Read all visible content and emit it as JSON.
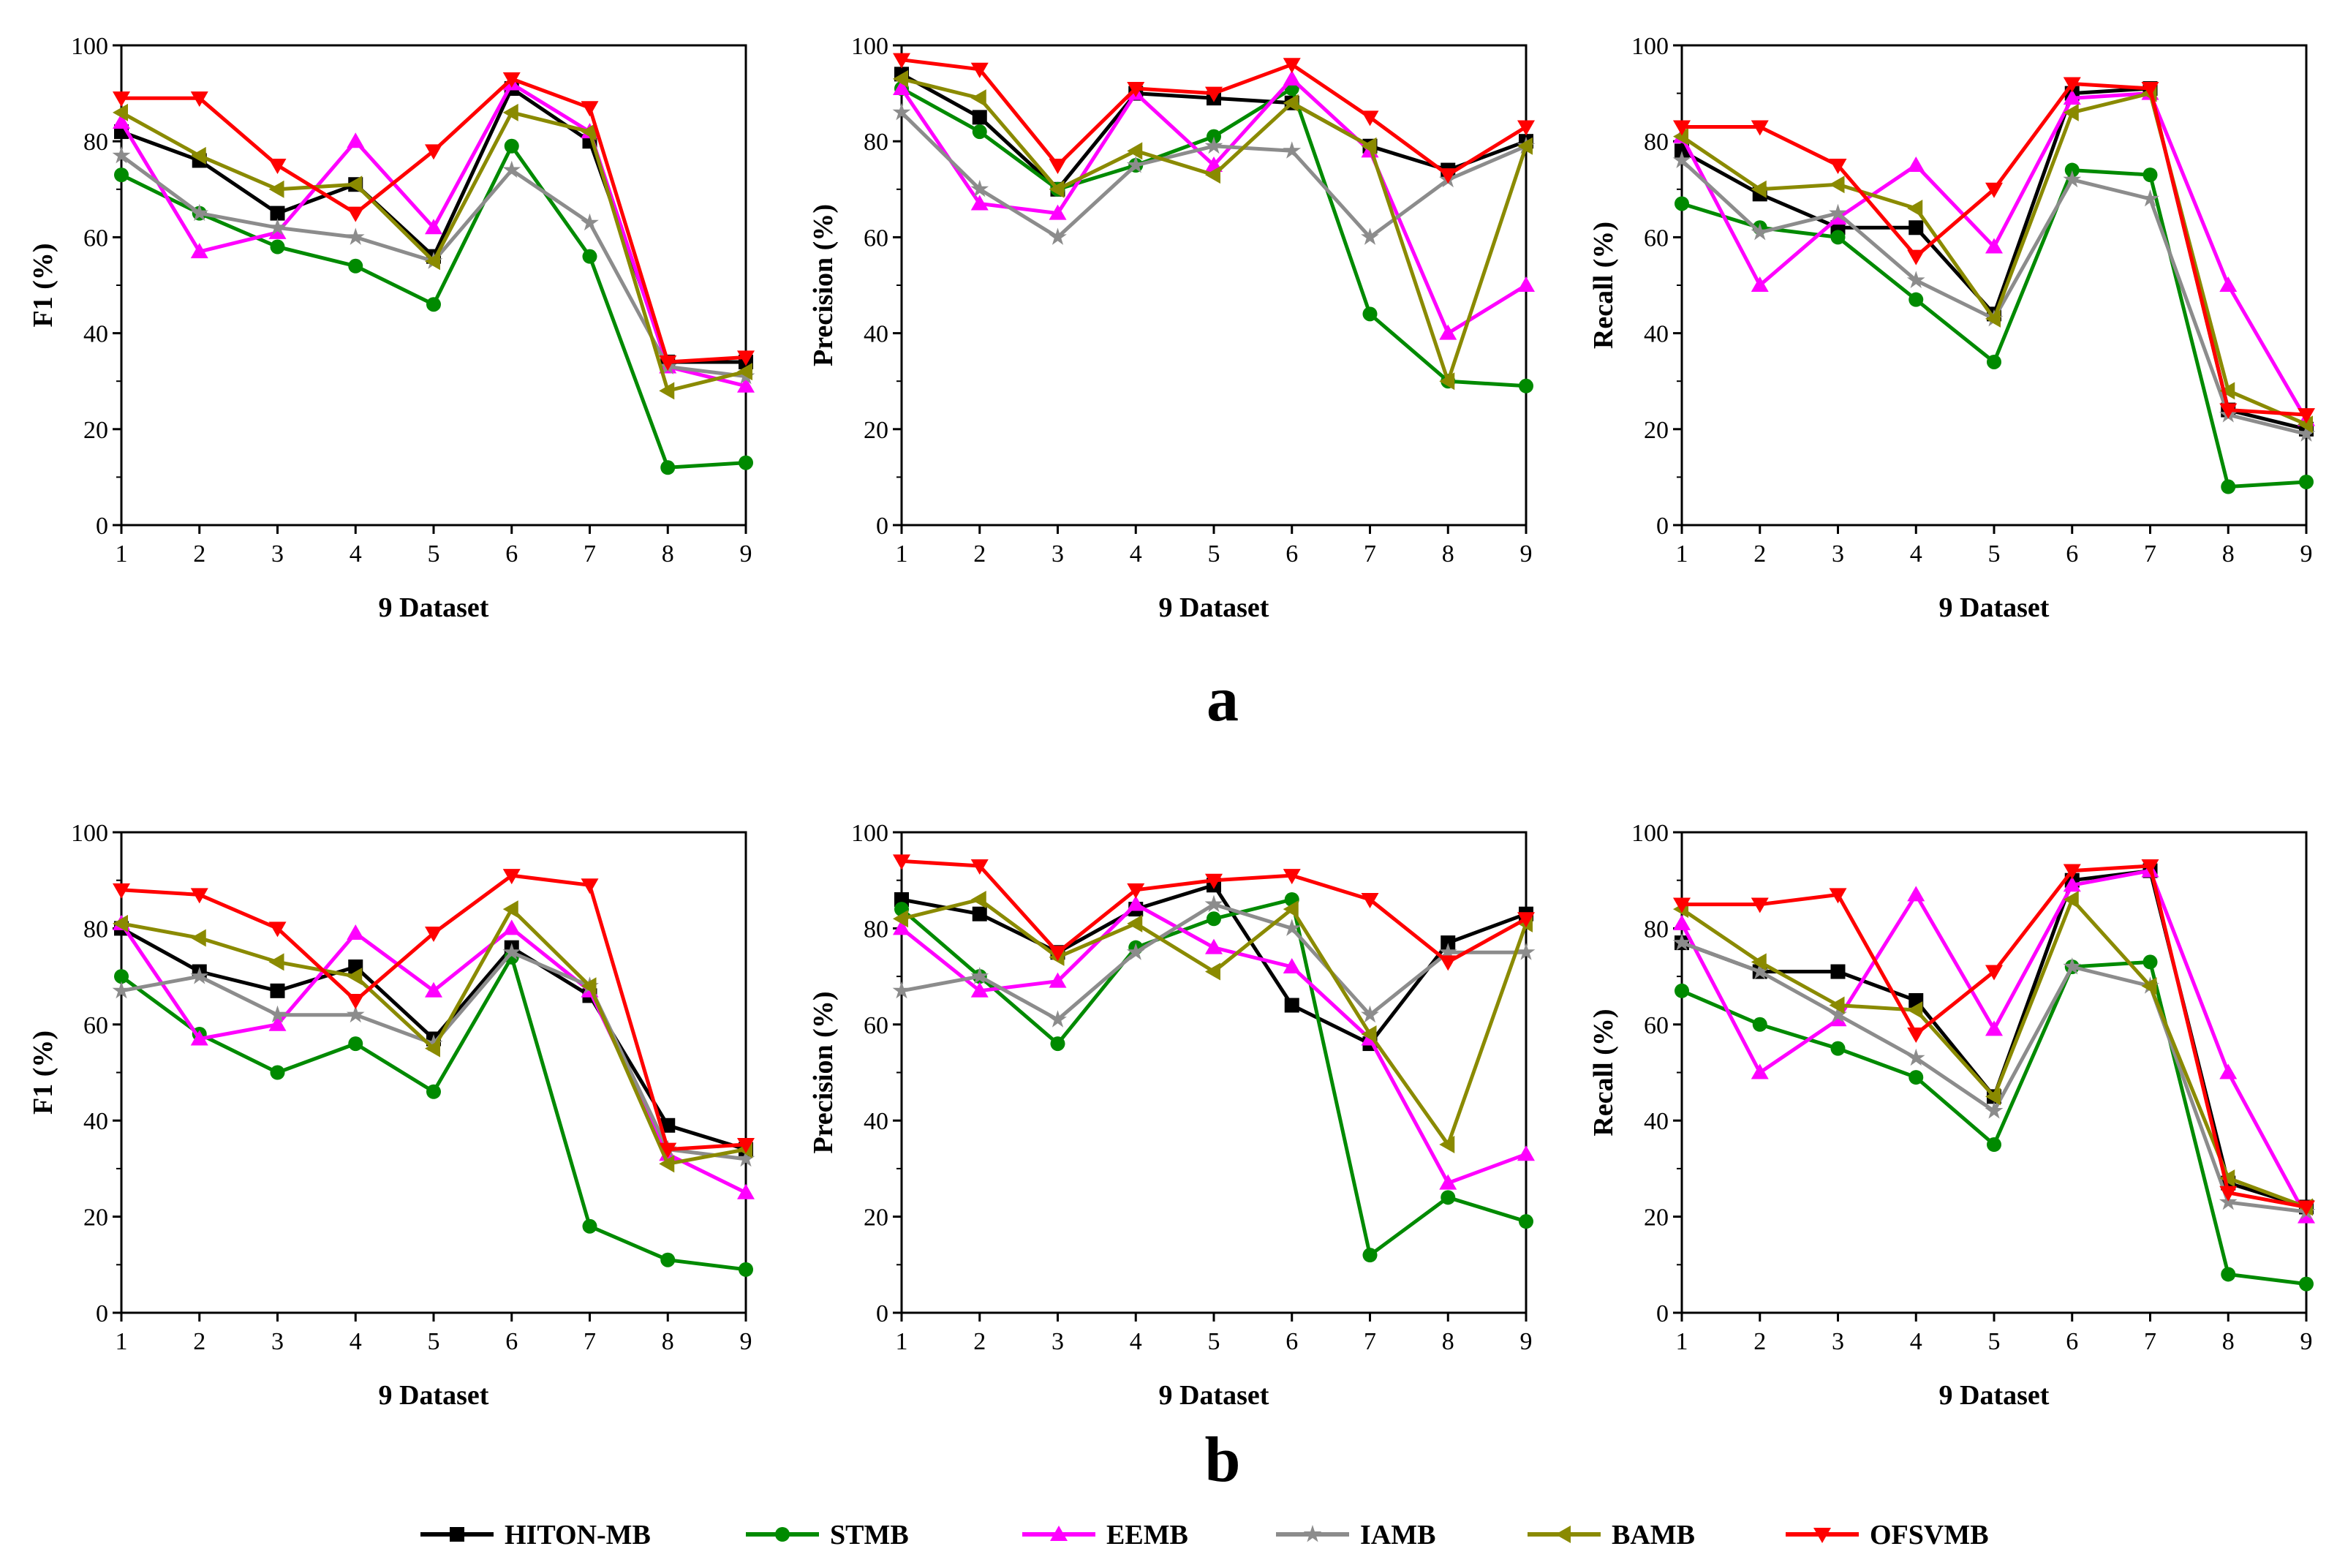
{
  "panel_labels": [
    "a",
    "b"
  ],
  "colors": {
    "HITON-MB": "#000000",
    "STMB": "#008a00",
    "EEMB": "#ff00ff",
    "IAMB": "#8c8c8c",
    "BAMB": "#8a8a00",
    "OFSVMB": "#ff0000"
  },
  "markers": {
    "HITON-MB": "square",
    "STMB": "circle",
    "EEMB": "triangle-up",
    "IAMB": "star",
    "BAMB": "triangle-left",
    "OFSVMB": "triangle-down"
  },
  "legend": [
    "HITON-MB",
    "STMB",
    "EEMB",
    "IAMB",
    "BAMB",
    "OFSVMB"
  ],
  "chart_data": [
    {
      "panel": "a",
      "type": "line",
      "xlabel": "9 Dataset",
      "ylabel": "F1 (%)",
      "x": [
        1,
        2,
        3,
        4,
        5,
        6,
        7,
        8,
        9
      ],
      "ylim": [
        0,
        100
      ],
      "yticks": [
        0,
        20,
        40,
        60,
        80,
        100
      ],
      "series": [
        {
          "name": "HITON-MB",
          "values": [
            82,
            76,
            65,
            71,
            56,
            91,
            80,
            34,
            34
          ]
        },
        {
          "name": "STMB",
          "values": [
            73,
            65,
            58,
            54,
            46,
            79,
            56,
            12,
            13
          ]
        },
        {
          "name": "EEMB",
          "values": [
            84,
            57,
            61,
            80,
            62,
            92,
            82,
            33,
            29
          ]
        },
        {
          "name": "IAMB",
          "values": [
            77,
            65,
            62,
            60,
            55,
            74,
            63,
            33,
            31
          ]
        },
        {
          "name": "BAMB",
          "values": [
            86,
            77,
            70,
            71,
            55,
            86,
            82,
            28,
            32
          ]
        },
        {
          "name": "OFSVMB",
          "values": [
            89,
            89,
            75,
            65,
            78,
            93,
            87,
            34,
            35
          ]
        }
      ]
    },
    {
      "panel": "a",
      "type": "line",
      "xlabel": "9 Dataset",
      "ylabel": "Precision (%)",
      "x": [
        1,
        2,
        3,
        4,
        5,
        6,
        7,
        8,
        9
      ],
      "ylim": [
        0,
        100
      ],
      "yticks": [
        0,
        20,
        40,
        60,
        80,
        100
      ],
      "series": [
        {
          "name": "HITON-MB",
          "values": [
            94,
            85,
            70,
            90,
            89,
            88,
            79,
            74,
            80
          ]
        },
        {
          "name": "STMB",
          "values": [
            91,
            82,
            70,
            75,
            81,
            91,
            44,
            30,
            29
          ]
        },
        {
          "name": "EEMB",
          "values": [
            91,
            67,
            65,
            90,
            75,
            93,
            78,
            40,
            50
          ]
        },
        {
          "name": "IAMB",
          "values": [
            86,
            70,
            60,
            75,
            79,
            78,
            60,
            72,
            79
          ]
        },
        {
          "name": "BAMB",
          "values": [
            93,
            89,
            70,
            78,
            73,
            88,
            79,
            30,
            79
          ]
        },
        {
          "name": "OFSVMB",
          "values": [
            97,
            95,
            75,
            91,
            90,
            96,
            85,
            73,
            83
          ]
        }
      ]
    },
    {
      "panel": "a",
      "type": "line",
      "xlabel": "9 Dataset",
      "ylabel": "Recall (%)",
      "x": [
        1,
        2,
        3,
        4,
        5,
        6,
        7,
        8,
        9
      ],
      "ylim": [
        0,
        100
      ],
      "yticks": [
        0,
        20,
        40,
        60,
        80,
        100
      ],
      "series": [
        {
          "name": "HITON-MB",
          "values": [
            78,
            69,
            62,
            62,
            44,
            90,
            91,
            24,
            20
          ]
        },
        {
          "name": "STMB",
          "values": [
            67,
            62,
            60,
            47,
            34,
            74,
            73,
            8,
            9
          ]
        },
        {
          "name": "EEMB",
          "values": [
            81,
            50,
            64,
            75,
            58,
            89,
            90,
            50,
            22
          ]
        },
        {
          "name": "IAMB",
          "values": [
            76,
            61,
            65,
            51,
            43,
            72,
            68,
            23,
            19
          ]
        },
        {
          "name": "BAMB",
          "values": [
            81,
            70,
            71,
            66,
            43,
            86,
            90,
            28,
            21
          ]
        },
        {
          "name": "OFSVMB",
          "values": [
            83,
            83,
            75,
            56,
            70,
            92,
            91,
            24,
            23
          ]
        }
      ]
    },
    {
      "panel": "b",
      "type": "line",
      "xlabel": "9 Dataset",
      "ylabel": "F1 (%)",
      "x": [
        1,
        2,
        3,
        4,
        5,
        6,
        7,
        8,
        9
      ],
      "ylim": [
        0,
        100
      ],
      "yticks": [
        0,
        20,
        40,
        60,
        80,
        100
      ],
      "series": [
        {
          "name": "HITON-MB",
          "values": [
            80,
            71,
            67,
            72,
            57,
            76,
            66,
            39,
            34
          ]
        },
        {
          "name": "STMB",
          "values": [
            70,
            58,
            50,
            56,
            46,
            74,
            18,
            11,
            9
          ]
        },
        {
          "name": "EEMB",
          "values": [
            81,
            57,
            60,
            79,
            67,
            80,
            67,
            33,
            25
          ]
        },
        {
          "name": "IAMB",
          "values": [
            67,
            70,
            62,
            62,
            56,
            75,
            68,
            34,
            32
          ]
        },
        {
          "name": "BAMB",
          "values": [
            81,
            78,
            73,
            70,
            55,
            84,
            68,
            31,
            34
          ]
        },
        {
          "name": "OFSVMB",
          "values": [
            88,
            87,
            80,
            65,
            79,
            91,
            89,
            34,
            35
          ]
        }
      ]
    },
    {
      "panel": "b",
      "type": "line",
      "xlabel": "9 Dataset",
      "ylabel": "Precision (%)",
      "x": [
        1,
        2,
        3,
        4,
        5,
        6,
        7,
        8,
        9
      ],
      "ylim": [
        0,
        100
      ],
      "yticks": [
        0,
        20,
        40,
        60,
        80,
        100
      ],
      "series": [
        {
          "name": "HITON-MB",
          "values": [
            86,
            83,
            75,
            84,
            89,
            64,
            56,
            77,
            83
          ]
        },
        {
          "name": "STMB",
          "values": [
            84,
            70,
            56,
            76,
            82,
            86,
            12,
            24,
            19
          ]
        },
        {
          "name": "EEMB",
          "values": [
            80,
            67,
            69,
            85,
            76,
            72,
            57,
            27,
            33
          ]
        },
        {
          "name": "IAMB",
          "values": [
            67,
            70,
            61,
            75,
            85,
            80,
            62,
            75,
            75
          ]
        },
        {
          "name": "BAMB",
          "values": [
            82,
            86,
            74,
            81,
            71,
            84,
            58,
            35,
            81
          ]
        },
        {
          "name": "OFSVMB",
          "values": [
            94,
            93,
            75,
            88,
            90,
            91,
            86,
            73,
            82
          ]
        }
      ]
    },
    {
      "panel": "b",
      "type": "line",
      "xlabel": "9 Dataset",
      "ylabel": "Recall (%)",
      "x": [
        1,
        2,
        3,
        4,
        5,
        6,
        7,
        8,
        9
      ],
      "ylim": [
        0,
        100
      ],
      "yticks": [
        0,
        20,
        40,
        60,
        80,
        100
      ],
      "series": [
        {
          "name": "HITON-MB",
          "values": [
            77,
            71,
            71,
            65,
            45,
            90,
            92,
            27,
            22
          ]
        },
        {
          "name": "STMB",
          "values": [
            67,
            60,
            55,
            49,
            35,
            72,
            73,
            8,
            6
          ]
        },
        {
          "name": "EEMB",
          "values": [
            81,
            50,
            61,
            87,
            59,
            89,
            92,
            50,
            20
          ]
        },
        {
          "name": "IAMB",
          "values": [
            77,
            71,
            62,
            53,
            42,
            72,
            68,
            23,
            21
          ]
        },
        {
          "name": "BAMB",
          "values": [
            84,
            73,
            64,
            63,
            45,
            86,
            68,
            28,
            22
          ]
        },
        {
          "name": "OFSVMB",
          "values": [
            85,
            85,
            87,
            58,
            71,
            92,
            93,
            25,
            22
          ]
        }
      ]
    }
  ]
}
